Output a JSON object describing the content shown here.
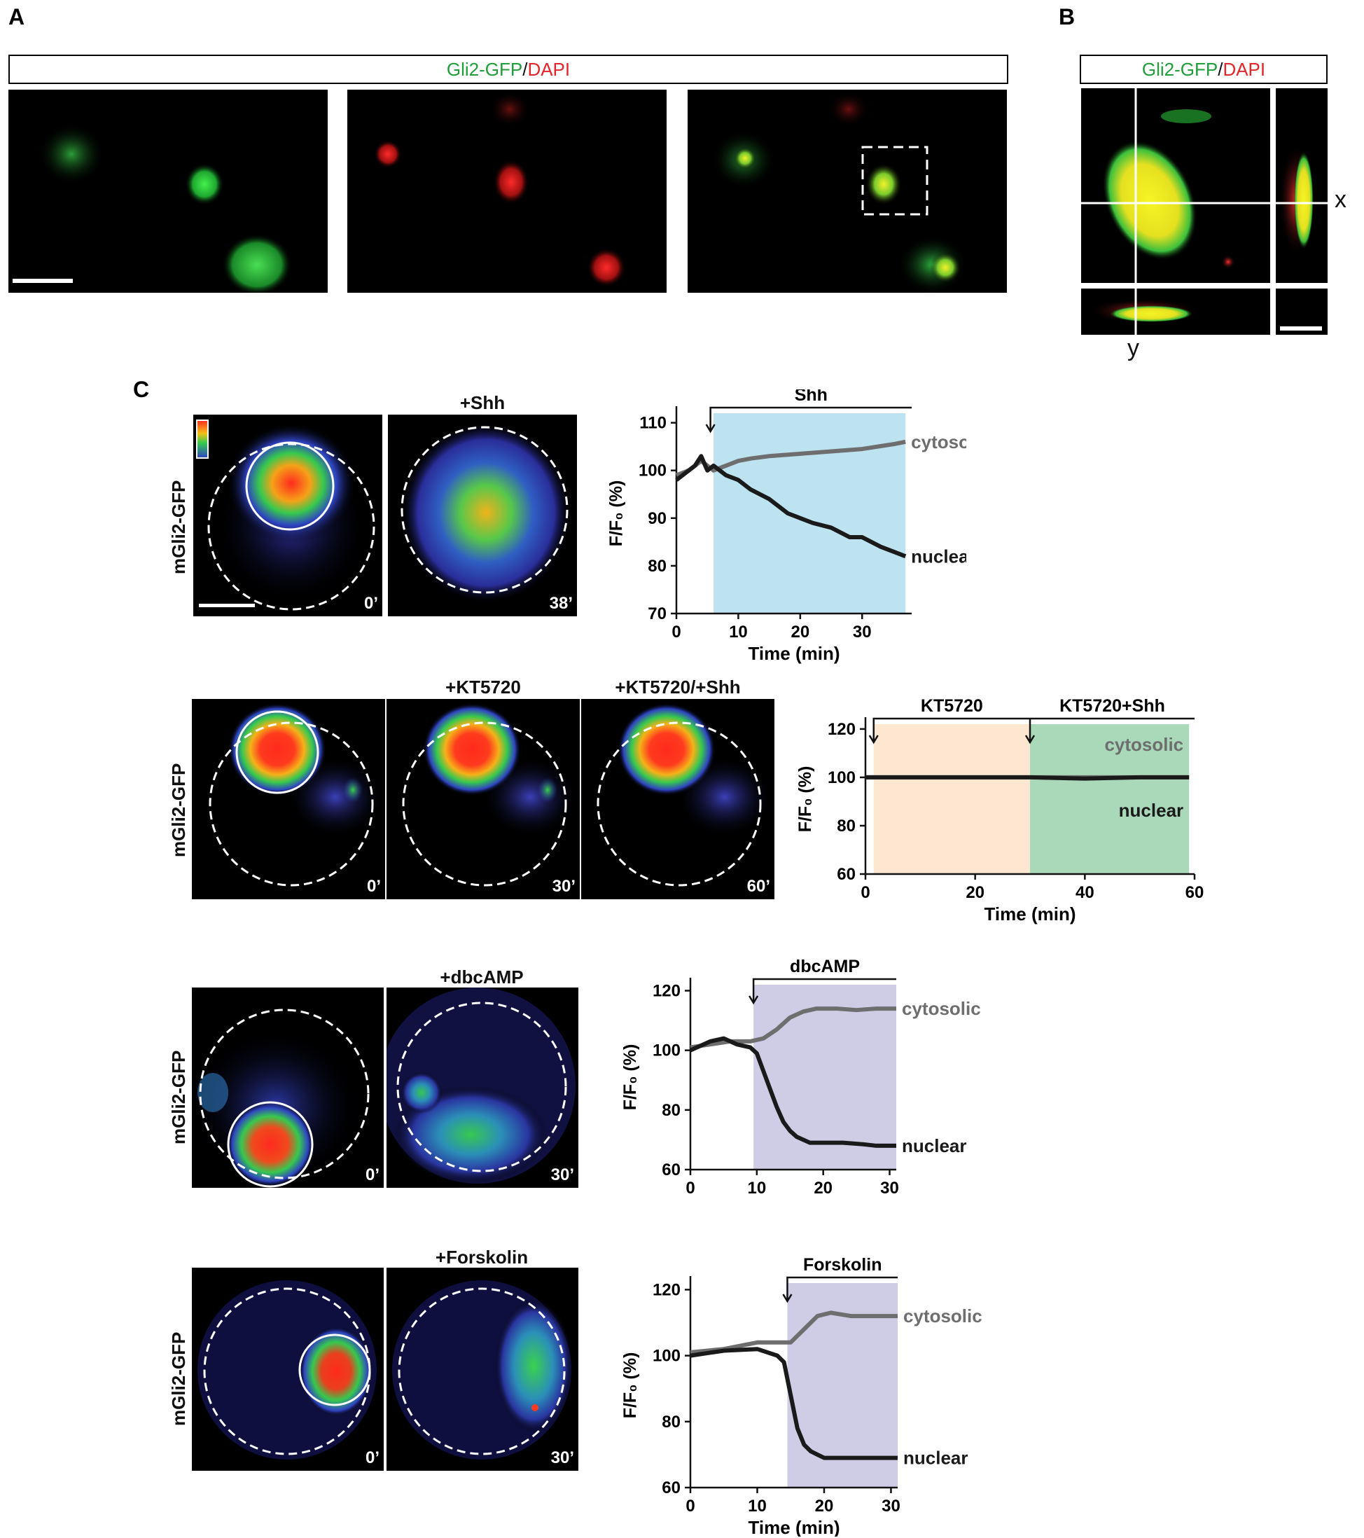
{
  "panel_labels": {
    "a": "A",
    "b": "B",
    "c": "C"
  },
  "panel_a": {
    "title_green": "Gli2-GFP",
    "title_sep": "/",
    "title_red": "DAPI"
  },
  "panel_b": {
    "title_green": "Gli2-GFP",
    "title_sep": "/",
    "title_red": "DAPI",
    "x_label": "x",
    "y_label": "y"
  },
  "rows": [
    {
      "ylabel": "mGli2-GFP",
      "treatments": [
        "+Shh"
      ],
      "times": [
        "0’",
        "38’"
      ]
    },
    {
      "ylabel": "mGli2-GFP",
      "treatments": [
        "+KT5720",
        "+KT5720/+Shh"
      ],
      "times": [
        "0’",
        "30’",
        "60’"
      ]
    },
    {
      "ylabel": "mGli2-GFP",
      "treatments": [
        "+dbcAMP"
      ],
      "times": [
        "0’",
        "30’"
      ]
    },
    {
      "ylabel": "mGli2-GFP",
      "treatments": [
        "+Forskolin"
      ],
      "times": [
        "0’",
        "30’"
      ]
    }
  ],
  "colors": {
    "cytosolic": "#6e6e6e",
    "nuclear": "#1a1a1a",
    "shh_shade": "#bde3f0",
    "kt_shade": "#fde7d0",
    "kts_shade": "#a9d9b9",
    "cam_shade": "#cfcde6"
  },
  "chart_data": [
    {
      "type": "line",
      "bar_label": "Shh",
      "xlabel": "Time (min)",
      "ylabel": "F/F₀ (%)",
      "xlim": [
        0,
        38
      ],
      "ylim": [
        70,
        112
      ],
      "xticks": [
        0,
        10,
        20,
        30
      ],
      "yticks": [
        70,
        80,
        90,
        100,
        110
      ],
      "shade": [
        6,
        37
      ],
      "arrow_x": 5.5,
      "series": [
        {
          "name": "cytosolic",
          "x": [
            0,
            2,
            4,
            5,
            6,
            8,
            10,
            12,
            15,
            20,
            25,
            30,
            35,
            37
          ],
          "values": [
            99,
            100,
            102,
            101,
            100,
            101,
            102,
            102.5,
            103,
            103.5,
            104,
            104.5,
            105.5,
            106
          ]
        },
        {
          "name": "nuclear",
          "x": [
            0,
            2,
            3,
            4,
            5,
            6,
            8,
            10,
            12,
            15,
            18,
            20,
            22,
            25,
            28,
            30,
            33,
            35,
            37
          ],
          "values": [
            98,
            100,
            101,
            103,
            100,
            101,
            99,
            98,
            96,
            94,
            91,
            90,
            89,
            88,
            86,
            86,
            84,
            83,
            82
          ]
        }
      ]
    },
    {
      "type": "line",
      "bar_labels": [
        "KT5720",
        "KT5720+Shh"
      ],
      "xlabel": "Time (min)",
      "ylabel": "F/F₀ (%)",
      "xlim": [
        0,
        60
      ],
      "ylim": [
        60,
        122
      ],
      "xticks": [
        0,
        20,
        40,
        60
      ],
      "yticks": [
        60,
        80,
        100,
        120
      ],
      "shade1": [
        1.5,
        30
      ],
      "shade2": [
        30,
        59
      ],
      "arrow_xs": [
        1.5,
        30
      ],
      "series": [
        {
          "name": "cytosolic",
          "x": [
            0,
            10,
            20,
            30,
            40,
            50,
            59
          ],
          "values": [
            100,
            100,
            100,
            100,
            100,
            100,
            100
          ]
        },
        {
          "name": "nuclear",
          "x": [
            0,
            10,
            20,
            30,
            40,
            50,
            59
          ],
          "values": [
            100,
            100,
            100,
            100,
            99.5,
            100,
            100
          ]
        }
      ]
    },
    {
      "type": "line",
      "bar_label": "dbcAMP",
      "xlabel": "",
      "ylabel": "F/F₀ (%)",
      "xlim": [
        0,
        31
      ],
      "ylim": [
        60,
        122
      ],
      "xticks": [
        0,
        10,
        20,
        30
      ],
      "yticks": [
        60,
        80,
        100,
        120
      ],
      "shade": [
        9.5,
        31
      ],
      "arrow_x": 9.5,
      "series": [
        {
          "name": "cytosolic",
          "x": [
            0,
            3,
            6,
            9,
            11,
            13,
            15,
            17,
            19,
            22,
            25,
            28,
            31
          ],
          "values": [
            101,
            102,
            103,
            103,
            104,
            107,
            111,
            113,
            114,
            114,
            113.5,
            114,
            114
          ]
        },
        {
          "name": "nuclear",
          "x": [
            0,
            3,
            5,
            7,
            9,
            10,
            11,
            12,
            13,
            14,
            15,
            16,
            17,
            18,
            20,
            23,
            26,
            28,
            31
          ],
          "values": [
            100,
            103,
            104,
            102,
            101,
            99,
            93,
            87,
            81,
            76,
            73,
            71,
            70,
            69,
            69,
            69,
            68.5,
            68,
            68
          ]
        }
      ]
    },
    {
      "type": "line",
      "bar_label": "Forskolin",
      "xlabel": "Time (min)",
      "ylabel": "F/F₀ (%)",
      "xlim": [
        0,
        31
      ],
      "ylim": [
        60,
        122
      ],
      "xticks": [
        0,
        10,
        20,
        30
      ],
      "yticks": [
        60,
        80,
        100,
        120
      ],
      "shade": [
        14.5,
        31
      ],
      "arrow_x": 14.5,
      "series": [
        {
          "name": "cytosolic",
          "x": [
            0,
            5,
            10,
            13,
            15,
            17,
            19,
            21,
            24,
            27,
            31
          ],
          "values": [
            101,
            102,
            104,
            104,
            104,
            108,
            112,
            113,
            112,
            112,
            112
          ]
        },
        {
          "name": "nuclear",
          "x": [
            0,
            5,
            10,
            13,
            14,
            15,
            16,
            17,
            18,
            19,
            20,
            22,
            25,
            28,
            31
          ],
          "values": [
            100,
            101.5,
            102,
            100,
            98,
            88,
            78,
            73,
            71,
            70,
            69,
            69,
            69,
            69,
            69
          ]
        }
      ]
    }
  ]
}
